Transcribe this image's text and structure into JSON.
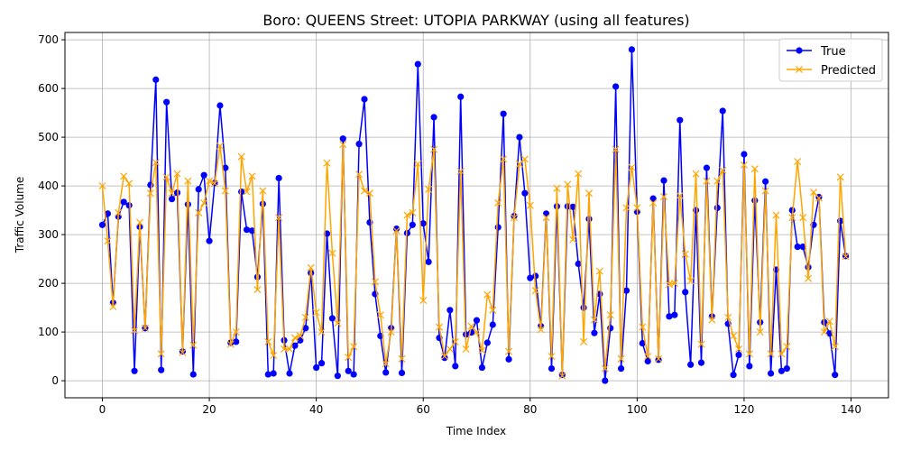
{
  "chart_data": {
    "type": "line",
    "title": "Boro: QUEENS Street: UTOPIA PARKWAY (using all features)",
    "xlabel": "Time Index",
    "ylabel": "Traffic Volume",
    "xlim": [
      -7,
      147
    ],
    "ylim": [
      -35,
      715
    ],
    "xticks": [
      0,
      20,
      40,
      60,
      80,
      100,
      120,
      140
    ],
    "yticks": [
      0,
      100,
      200,
      300,
      400,
      500,
      600,
      700
    ],
    "grid": true,
    "legend_position": "top-right",
    "series": [
      {
        "name": "True",
        "color": "#0000ff",
        "marker": "circle",
        "values": [
          320,
          343,
          160,
          337,
          367,
          360,
          20,
          316,
          108,
          402,
          618,
          22,
          572,
          373,
          386,
          60,
          362,
          13,
          393,
          422,
          287,
          406,
          565,
          437,
          78,
          80,
          388,
          310,
          308,
          213,
          363,
          13,
          15,
          416,
          83,
          15,
          72,
          83,
          108,
          221,
          27,
          36,
          302,
          128,
          10,
          497,
          20,
          13,
          486,
          578,
          325,
          178,
          92,
          17,
          108,
          312,
          16,
          303,
          320,
          650,
          323,
          244,
          541,
          88,
          47,
          145,
          30,
          583,
          95,
          99,
          124,
          27,
          78,
          115,
          315,
          548,
          44,
          338,
          500,
          385,
          211,
          215,
          112,
          343,
          25,
          358,
          12,
          358,
          357,
          240,
          150,
          332,
          98,
          178,
          0,
          108,
          604,
          25,
          185,
          680,
          347,
          77,
          40,
          374,
          43,
          411,
          132,
          135,
          535,
          182,
          33,
          350,
          37,
          437,
          132,
          355,
          554,
          117,
          12,
          53,
          465,
          30,
          370,
          120,
          409,
          15,
          228,
          20,
          25,
          350,
          275,
          275,
          233,
          320,
          377,
          120,
          97,
          12,
          328,
          256
        ]
      },
      {
        "name": "Predicted",
        "color": "#ffa500",
        "marker": "x",
        "values": [
          400,
          287,
          152,
          345,
          420,
          405,
          103,
          325,
          108,
          385,
          448,
          55,
          418,
          385,
          425,
          58,
          410,
          73,
          345,
          365,
          410,
          405,
          482,
          390,
          75,
          100,
          460,
          388,
          420,
          187,
          390,
          80,
          52,
          335,
          65,
          65,
          88,
          92,
          130,
          232,
          140,
          100,
          447,
          262,
          118,
          485,
          48,
          70,
          424,
          390,
          385,
          203,
          135,
          35,
          100,
          308,
          45,
          340,
          345,
          445,
          165,
          393,
          475,
          110,
          50,
          65,
          80,
          430,
          65,
          112,
          100,
          62,
          177,
          145,
          365,
          455,
          60,
          335,
          445,
          455,
          360,
          185,
          105,
          335,
          50,
          395,
          10,
          403,
          290,
          425,
          80,
          385,
          125,
          225,
          25,
          135,
          475,
          45,
          355,
          438,
          355,
          110,
          50,
          365,
          45,
          378,
          198,
          200,
          380,
          260,
          205,
          425,
          75,
          410,
          125,
          410,
          432,
          130,
          92,
          65,
          443,
          55,
          435,
          100,
          390,
          55,
          340,
          55,
          70,
          335,
          450,
          335,
          210,
          387,
          375,
          100,
          122,
          70,
          418,
          255
        ]
      }
    ]
  }
}
